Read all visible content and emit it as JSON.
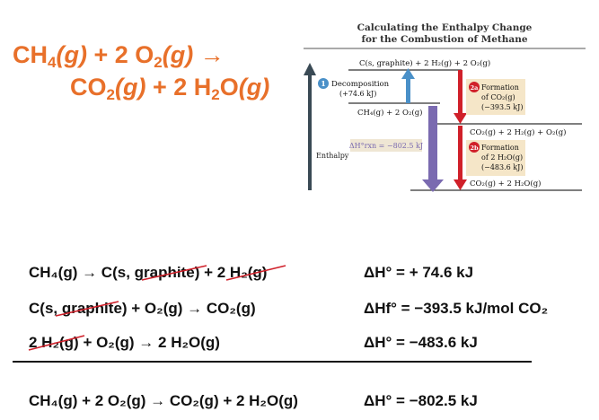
{
  "title_equation": {
    "line1": {
      "a": "CH",
      "a_sub": "4",
      "a_state": "(g)",
      "plus": " + 2 O",
      "b_sub": "2",
      "b_state": "(g)",
      "arrow": " →"
    },
    "line2": {
      "a": "CO",
      "a_sub": "2",
      "a_state": "(g)",
      "plus": " + 2 H",
      "b_sub": "2",
      "b_mid": "O",
      "b_state": "(g)"
    }
  },
  "diagram": {
    "title_line1": "Calculating the Enthalpy Change",
    "title_line2": "for the Combustion of Methane",
    "axis_label": "Enthalpy",
    "levels": {
      "top": "C(s, graphite) + 2 H₂(g) + 2 O₂(g)",
      "reactants": "CH₄(g) + 2 O₂(g)",
      "middle": "CO₂(g) + 2 H₂(g) + O₂(g)",
      "products": "CO₂(g) + 2 H₂O(g)"
    },
    "step1": {
      "badge": "1",
      "line1": "Decomposition",
      "line2": "(+74.6 kJ)"
    },
    "step2a": {
      "badge": "2a",
      "line1": "Formation",
      "line2": "of CO₂(g)",
      "line3": "(−393.5 kJ)"
    },
    "step2b": {
      "badge": "2b",
      "line1": "Formation",
      "line2": "of 2 H₂O(g)",
      "line3": "(−483.6 kJ)"
    },
    "overall": "ΔH°rxn = −802.5 kJ",
    "colors": {
      "step1": "#4a90c8",
      "step2": "#d0202a",
      "overall": "#7a6ab0",
      "axis": "#3a4a55",
      "badge_fill": "#f5e6c8"
    }
  },
  "equations": [
    {
      "lhs": "CH₄(g) → C(s, graphite) + 2 H₂(g)",
      "dh_label": "ΔH° =",
      "dh_value": "+ 74.6 kJ"
    },
    {
      "lhs": "C(s, graphite) + O₂(g) → CO₂(g)",
      "dh_label": "ΔHf° =",
      "dh_value": "−393.5 kJ/mol CO₂"
    },
    {
      "lhs": "2 H₂(g) + O₂(g) → 2 H₂O(g)",
      "dh_label": "ΔH° =",
      "dh_value": "−483.6 kJ"
    }
  ],
  "net_equation": {
    "lhs": "CH₄(g) + 2 O₂(g) → CO₂(g) + 2 H₂O(g)",
    "dh_label": "ΔH° =",
    "dh_value": "−802.5 kJ"
  }
}
